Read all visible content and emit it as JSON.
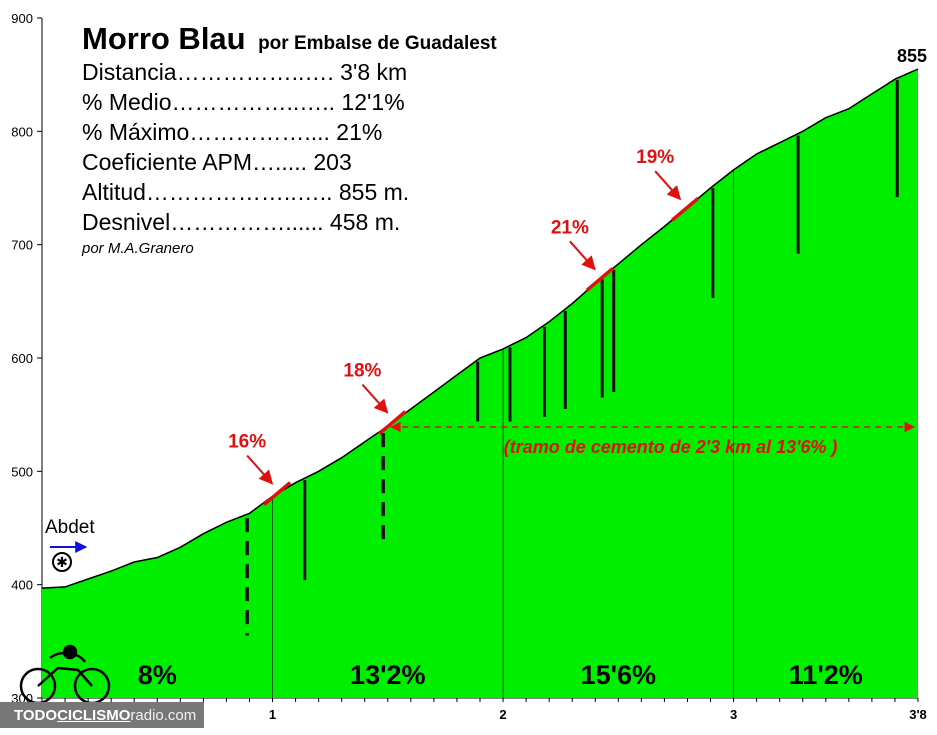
{
  "chart_data": {
    "type": "area",
    "title": "Morro Blau",
    "subtitle": "por Embalse de Guadalest",
    "fill_color": "#00ee00",
    "xlim": [
      0,
      3.8
    ],
    "ylim": [
      300,
      900
    ],
    "y_ticks": [
      300,
      400,
      500,
      600,
      700,
      800,
      900
    ],
    "y_tick_labels": [
      "300",
      "400",
      "500",
      "600",
      "700",
      "800",
      "900"
    ],
    "x_ticks": [
      1,
      2,
      3,
      3.8
    ],
    "x_tick_labels": [
      "1",
      "2",
      "3",
      "3'8"
    ],
    "x": [
      0,
      0.1,
      0.2,
      0.3,
      0.4,
      0.5,
      0.6,
      0.7,
      0.8,
      0.9,
      1.0,
      1.1,
      1.2,
      1.3,
      1.4,
      1.5,
      1.6,
      1.7,
      1.8,
      1.9,
      2.0,
      2.1,
      2.2,
      2.3,
      2.4,
      2.5,
      2.6,
      2.7,
      2.8,
      2.9,
      3.0,
      3.1,
      3.2,
      3.3,
      3.4,
      3.5,
      3.6,
      3.7,
      3.8
    ],
    "elevation": [
      397,
      398,
      405,
      412,
      420,
      424,
      433,
      445,
      455,
      463,
      478,
      490,
      500,
      512,
      526,
      540,
      555,
      570,
      585,
      600,
      608,
      618,
      632,
      648,
      666,
      683,
      700,
      716,
      733,
      750,
      766,
      780,
      790,
      800,
      812,
      820,
      833,
      846,
      855
    ],
    "sections": [
      {
        "label": "8%",
        "x": 0.5
      },
      {
        "label": "13'2%",
        "x": 1.5
      },
      {
        "label": "15'6%",
        "x": 2.5
      },
      {
        "label": "11'2%",
        "x": 3.4
      }
    ],
    "slope_marks": [
      {
        "label": "16%",
        "x": 1.02
      },
      {
        "label": "18%",
        "x": 1.52
      },
      {
        "label": "21%",
        "x": 2.42
      },
      {
        "label": "19%",
        "x": 2.79
      }
    ],
    "dashed_markers": [
      {
        "x": 0.89,
        "bottom": 355
      },
      {
        "x": 1.48,
        "bottom": 433
      }
    ],
    "solid_markers": [
      {
        "x": 1.14,
        "bottom": 404
      },
      {
        "x": 1.89,
        "bottom": 544
      },
      {
        "x": 2.03,
        "bottom": 544
      },
      {
        "x": 2.18,
        "bottom": 548
      },
      {
        "x": 2.27,
        "bottom": 555
      },
      {
        "x": 2.43,
        "bottom": 565
      },
      {
        "x": 2.48,
        "bottom": 570
      },
      {
        "x": 2.91,
        "bottom": 653
      },
      {
        "x": 3.28,
        "bottom": 692
      },
      {
        "x": 3.71,
        "bottom": 742
      }
    ],
    "cement_section": {
      "label": "(tramo de cemento de 2'3 km al 13'6% )",
      "from": 1.48,
      "to": 3.8
    },
    "summit": {
      "label": "855"
    },
    "start": {
      "label": "Abdet"
    }
  },
  "info": {
    "lines": [
      "Distancia……………..…. 3'8 km",
      "% Medio……………..….. 12'1%",
      "% Máximo…………….... 21%",
      "Coeficiente APM…..... 203",
      "Altitud………………..….. 855 m.",
      "Desnivel……………...... 458 m."
    ],
    "author": "por M.A.Granero"
  },
  "brand": {
    "part1": "TODO",
    "part2": "CICLISMO",
    "part3": "radio.com"
  }
}
